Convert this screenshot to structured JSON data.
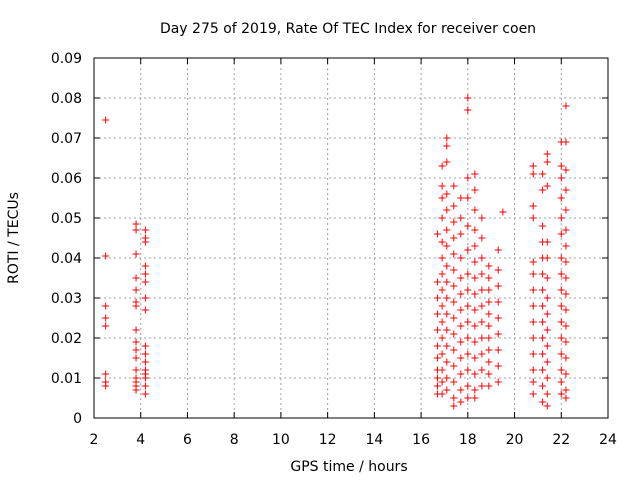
{
  "chart_data": {
    "type": "scatter",
    "title": "Day 275 of 2019, Rate Of TEC Index for receiver coen",
    "xlabel": "GPS time / hours",
    "ylabel": "ROTI / TECUs",
    "xlim": [
      2,
      24
    ],
    "ylim": [
      0,
      0.09
    ],
    "x_ticks": [
      "2",
      "4",
      "6",
      "8",
      "10",
      "12",
      "14",
      "16",
      "18",
      "20",
      "22",
      "24"
    ],
    "y_ticks": [
      "0",
      "0.01",
      "0.02",
      "0.03",
      "0.04",
      "0.05",
      "0.06",
      "0.07",
      "0.08",
      "0.09"
    ],
    "grid": true,
    "marker": "+",
    "marker_color": "#ff0000",
    "series": [
      {
        "points": [
          [
            2.5,
            0.0745
          ],
          [
            2.5,
            0.0405
          ],
          [
            2.5,
            0.028
          ],
          [
            2.5,
            0.025
          ],
          [
            2.5,
            0.023
          ],
          [
            2.5,
            0.011
          ],
          [
            2.5,
            0.009
          ],
          [
            2.5,
            0.008
          ],
          [
            3.8,
            0.0485
          ],
          [
            3.8,
            0.047
          ],
          [
            3.8,
            0.041
          ],
          [
            3.8,
            0.035
          ],
          [
            3.8,
            0.032
          ],
          [
            3.8,
            0.029
          ],
          [
            3.8,
            0.028
          ],
          [
            3.8,
            0.022
          ],
          [
            3.8,
            0.019
          ],
          [
            3.8,
            0.017
          ],
          [
            3.8,
            0.015
          ],
          [
            3.8,
            0.012
          ],
          [
            3.8,
            0.01
          ],
          [
            3.8,
            0.009
          ],
          [
            3.8,
            0.008
          ],
          [
            3.8,
            0.007
          ],
          [
            4.2,
            0.047
          ],
          [
            4.2,
            0.045
          ],
          [
            4.2,
            0.044
          ],
          [
            4.2,
            0.038
          ],
          [
            4.2,
            0.036
          ],
          [
            4.2,
            0.034
          ],
          [
            4.2,
            0.03
          ],
          [
            4.2,
            0.027
          ],
          [
            4.2,
            0.018
          ],
          [
            4.2,
            0.016
          ],
          [
            4.2,
            0.014
          ],
          [
            4.2,
            0.012
          ],
          [
            4.2,
            0.011
          ],
          [
            4.2,
            0.01
          ],
          [
            4.2,
            0.008
          ],
          [
            4.2,
            0.006
          ],
          [
            16.7,
            0.046
          ],
          [
            16.7,
            0.034
          ],
          [
            16.7,
            0.03
          ],
          [
            16.7,
            0.026
          ],
          [
            16.7,
            0.022
          ],
          [
            16.7,
            0.018
          ],
          [
            16.7,
            0.015
          ],
          [
            16.7,
            0.012
          ],
          [
            16.7,
            0.01
          ],
          [
            16.7,
            0.008
          ],
          [
            16.7,
            0.006
          ],
          [
            16.9,
            0.063
          ],
          [
            16.9,
            0.058
          ],
          [
            16.9,
            0.055
          ],
          [
            16.9,
            0.05
          ],
          [
            16.9,
            0.044
          ],
          [
            16.9,
            0.04
          ],
          [
            16.9,
            0.036
          ],
          [
            16.9,
            0.032
          ],
          [
            16.9,
            0.028
          ],
          [
            16.9,
            0.024
          ],
          [
            16.9,
            0.02
          ],
          [
            16.9,
            0.016
          ],
          [
            16.9,
            0.012
          ],
          [
            16.9,
            0.009
          ],
          [
            16.9,
            0.006
          ],
          [
            17.1,
            0.07
          ],
          [
            17.1,
            0.068
          ],
          [
            17.1,
            0.064
          ],
          [
            17.1,
            0.056
          ],
          [
            17.1,
            0.052
          ],
          [
            17.1,
            0.047
          ],
          [
            17.1,
            0.043
          ],
          [
            17.1,
            0.038
          ],
          [
            17.1,
            0.034
          ],
          [
            17.1,
            0.03
          ],
          [
            17.1,
            0.026
          ],
          [
            17.1,
            0.022
          ],
          [
            17.1,
            0.018
          ],
          [
            17.1,
            0.014
          ],
          [
            17.1,
            0.01
          ],
          [
            17.1,
            0.007
          ],
          [
            17.4,
            0.058
          ],
          [
            17.4,
            0.053
          ],
          [
            17.4,
            0.049
          ],
          [
            17.4,
            0.045
          ],
          [
            17.4,
            0.041
          ],
          [
            17.4,
            0.037
          ],
          [
            17.4,
            0.033
          ],
          [
            17.4,
            0.029
          ],
          [
            17.4,
            0.025
          ],
          [
            17.4,
            0.021
          ],
          [
            17.4,
            0.017
          ],
          [
            17.4,
            0.013
          ],
          [
            17.4,
            0.009
          ],
          [
            17.4,
            0.005
          ],
          [
            17.4,
            0.003
          ],
          [
            17.7,
            0.055
          ],
          [
            17.7,
            0.05
          ],
          [
            17.7,
            0.046
          ],
          [
            17.7,
            0.04
          ],
          [
            17.7,
            0.035
          ],
          [
            17.7,
            0.031
          ],
          [
            17.7,
            0.027
          ],
          [
            17.7,
            0.023
          ],
          [
            17.7,
            0.019
          ],
          [
            17.7,
            0.015
          ],
          [
            17.7,
            0.011
          ],
          [
            17.7,
            0.007
          ],
          [
            17.7,
            0.004
          ],
          [
            18.0,
            0.08
          ],
          [
            18.0,
            0.077
          ],
          [
            18.0,
            0.06
          ],
          [
            18.0,
            0.055
          ],
          [
            18.0,
            0.048
          ],
          [
            18.0,
            0.042
          ],
          [
            18.0,
            0.036
          ],
          [
            18.0,
            0.032
          ],
          [
            18.0,
            0.028
          ],
          [
            18.0,
            0.024
          ],
          [
            18.0,
            0.02
          ],
          [
            18.0,
            0.016
          ],
          [
            18.0,
            0.012
          ],
          [
            18.0,
            0.008
          ],
          [
            18.0,
            0.005
          ],
          [
            18.3,
            0.061
          ],
          [
            18.3,
            0.057
          ],
          [
            18.3,
            0.052
          ],
          [
            18.3,
            0.047
          ],
          [
            18.3,
            0.043
          ],
          [
            18.3,
            0.039
          ],
          [
            18.3,
            0.035
          ],
          [
            18.3,
            0.031
          ],
          [
            18.3,
            0.027
          ],
          [
            18.3,
            0.023
          ],
          [
            18.3,
            0.019
          ],
          [
            18.3,
            0.015
          ],
          [
            18.3,
            0.011
          ],
          [
            18.3,
            0.007
          ],
          [
            18.3,
            0.005
          ],
          [
            18.6,
            0.05
          ],
          [
            18.6,
            0.045
          ],
          [
            18.6,
            0.04
          ],
          [
            18.6,
            0.036
          ],
          [
            18.6,
            0.032
          ],
          [
            18.6,
            0.028
          ],
          [
            18.6,
            0.024
          ],
          [
            18.6,
            0.02
          ],
          [
            18.6,
            0.016
          ],
          [
            18.6,
            0.012
          ],
          [
            18.6,
            0.008
          ],
          [
            18.9,
            0.038
          ],
          [
            18.9,
            0.035
          ],
          [
            18.9,
            0.032
          ],
          [
            18.9,
            0.029
          ],
          [
            18.9,
            0.026
          ],
          [
            18.9,
            0.023
          ],
          [
            18.9,
            0.02
          ],
          [
            18.9,
            0.017
          ],
          [
            18.9,
            0.014
          ],
          [
            18.9,
            0.011
          ],
          [
            18.9,
            0.008
          ],
          [
            19.3,
            0.042
          ],
          [
            19.3,
            0.037
          ],
          [
            19.3,
            0.033
          ],
          [
            19.3,
            0.029
          ],
          [
            19.3,
            0.025
          ],
          [
            19.3,
            0.021
          ],
          [
            19.3,
            0.017
          ],
          [
            19.3,
            0.013
          ],
          [
            19.3,
            0.009
          ],
          [
            19.5,
            0.0515
          ],
          [
            20.8,
            0.063
          ],
          [
            20.8,
            0.061
          ],
          [
            20.8,
            0.053
          ],
          [
            20.8,
            0.05
          ],
          [
            20.8,
            0.039
          ],
          [
            20.8,
            0.036
          ],
          [
            20.8,
            0.032
          ],
          [
            20.8,
            0.028
          ],
          [
            20.8,
            0.024
          ],
          [
            20.8,
            0.02
          ],
          [
            20.8,
            0.016
          ],
          [
            20.8,
            0.012
          ],
          [
            20.8,
            0.009
          ],
          [
            20.8,
            0.006
          ],
          [
            21.2,
            0.061
          ],
          [
            21.2,
            0.057
          ],
          [
            21.2,
            0.048
          ],
          [
            21.2,
            0.044
          ],
          [
            21.2,
            0.04
          ],
          [
            21.2,
            0.036
          ],
          [
            21.2,
            0.032
          ],
          [
            21.2,
            0.028
          ],
          [
            21.2,
            0.024
          ],
          [
            21.2,
            0.02
          ],
          [
            21.2,
            0.016
          ],
          [
            21.2,
            0.012
          ],
          [
            21.2,
            0.008
          ],
          [
            21.2,
            0.004
          ],
          [
            21.4,
            0.066
          ],
          [
            21.4,
            0.064
          ],
          [
            21.4,
            0.058
          ],
          [
            21.4,
            0.044
          ],
          [
            21.4,
            0.04
          ],
          [
            21.4,
            0.035
          ],
          [
            21.4,
            0.03
          ],
          [
            21.4,
            0.026
          ],
          [
            21.4,
            0.022
          ],
          [
            21.4,
            0.018
          ],
          [
            21.4,
            0.014
          ],
          [
            21.4,
            0.01
          ],
          [
            21.4,
            0.006
          ],
          [
            21.4,
            0.003
          ],
          [
            22.0,
            0.069
          ],
          [
            22.0,
            0.063
          ],
          [
            22.0,
            0.06
          ],
          [
            22.0,
            0.055
          ],
          [
            22.0,
            0.05
          ],
          [
            22.0,
            0.046
          ],
          [
            22.0,
            0.04
          ],
          [
            22.0,
            0.036
          ],
          [
            22.0,
            0.032
          ],
          [
            22.0,
            0.028
          ],
          [
            22.0,
            0.024
          ],
          [
            22.0,
            0.02
          ],
          [
            22.0,
            0.016
          ],
          [
            22.0,
            0.012
          ],
          [
            22.0,
            0.009
          ],
          [
            22.0,
            0.006
          ],
          [
            22.2,
            0.078
          ],
          [
            22.2,
            0.069
          ],
          [
            22.2,
            0.062
          ],
          [
            22.2,
            0.057
          ],
          [
            22.2,
            0.052
          ],
          [
            22.2,
            0.047
          ],
          [
            22.2,
            0.043
          ],
          [
            22.2,
            0.039
          ],
          [
            22.2,
            0.035
          ],
          [
            22.2,
            0.031
          ],
          [
            22.2,
            0.027
          ],
          [
            22.2,
            0.023
          ],
          [
            22.2,
            0.019
          ],
          [
            22.2,
            0.015
          ],
          [
            22.2,
            0.011
          ],
          [
            22.2,
            0.007
          ],
          [
            22.2,
            0.005
          ]
        ]
      }
    ]
  }
}
